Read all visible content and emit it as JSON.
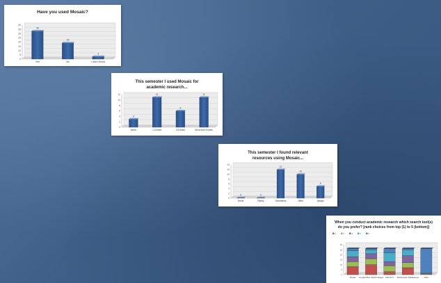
{
  "chart_data": [
    {
      "type": "bar",
      "title": "Have you used Mosaic?",
      "categories": [
        "Yes",
        "No",
        "I don't Know"
      ],
      "values": [
        33,
        19,
        3
      ],
      "ylim": [
        0,
        40
      ],
      "yticks": [
        0,
        5,
        10,
        15,
        20,
        25,
        30,
        35,
        40
      ],
      "bar_color": "#3d6aa8"
    },
    {
      "type": "bar",
      "title": [
        "This semester I used Mosaic for",
        "academic research..."
      ],
      "categories": [
        "Never",
        "1-2 times",
        "3-5 times",
        "More than 5 times"
      ],
      "values": [
        3,
        11,
        6,
        11
      ],
      "ylim": [
        0,
        12
      ],
      "yticks": [
        0,
        2,
        4,
        6,
        8,
        10,
        12
      ],
      "bar_color": "#3d6aa8"
    },
    {
      "type": "bar",
      "title": [
        "This semester I found relevant",
        "resources using Mosaic..."
      ],
      "categories": [
        "Never",
        "Rarely",
        "Sometimes",
        "Often",
        "Always"
      ],
      "values": [
        0,
        0,
        12,
        10,
        5
      ],
      "ylim": [
        0,
        14
      ],
      "yticks": [
        0,
        2,
        4,
        6,
        8,
        10,
        12,
        14
      ],
      "bar_color": "#3d6aa8"
    },
    {
      "type": "bar",
      "stacked": true,
      "title": [
        "When you conduct academic research which search tool(s)",
        "do you prefer? [rank choices from top (1) to 5 (bottom)]"
      ],
      "categories": [
        "Mosaic",
        "Google/Other Search Engine",
        "WILLIS II",
        "Subscription Database(s)",
        "Other"
      ],
      "series": [
        {
          "name": "1",
          "values": [
            8,
            10,
            3,
            7,
            1
          ],
          "color": "#c0504d"
        },
        {
          "name": "2",
          "values": [
            5,
            6,
            6,
            5,
            0
          ],
          "color": "#9bbb59"
        },
        {
          "name": "3",
          "values": [
            5,
            5,
            4,
            7,
            0
          ],
          "color": "#8064a2"
        },
        {
          "name": "4",
          "values": [
            6,
            4,
            9,
            6,
            1
          ],
          "color": "#4bacc6"
        },
        {
          "name": "5",
          "values": [
            2,
            1,
            4,
            1,
            24
          ],
          "color": "#4f81bd"
        }
      ],
      "ylim": [
        0,
        30
      ],
      "yticks": [
        0,
        5,
        10,
        15,
        20,
        25,
        30
      ]
    }
  ]
}
